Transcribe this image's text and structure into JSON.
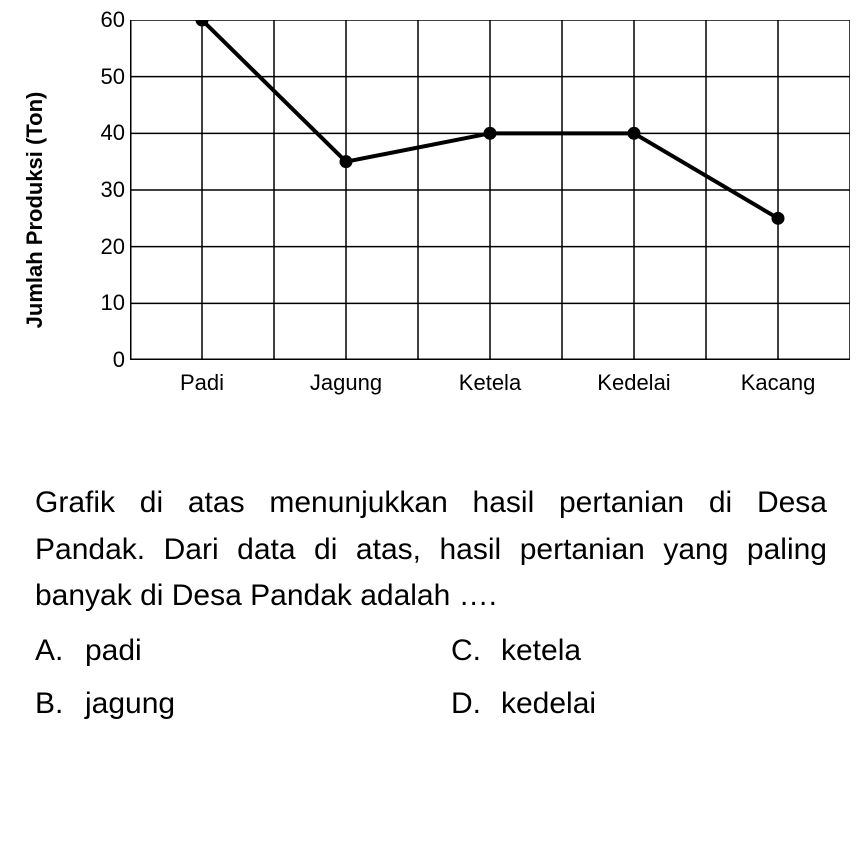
{
  "chart": {
    "type": "line",
    "ylabel": "Jumlah Produksi (Ton)",
    "ylabel_fontsize": 22,
    "ylabel_fontweight": "bold",
    "categories": [
      "Padi",
      "Jagung",
      "Ketela",
      "Kedelai",
      "Kacang"
    ],
    "values": [
      60,
      35,
      40,
      40,
      25
    ],
    "ylim": [
      0,
      60
    ],
    "ytick_step": 10,
    "yticks": [
      0,
      10,
      20,
      30,
      40,
      50,
      60
    ],
    "x_grid_count": 11,
    "x_data_indices": [
      1,
      3,
      5,
      7,
      9
    ],
    "line_color": "#000000",
    "marker_color": "#000000",
    "grid_color": "#000000",
    "background_color": "#ffffff",
    "line_width": 4,
    "grid_width": 1.5,
    "marker_radius": 6.5,
    "tick_label_fontsize": 22
  },
  "question": {
    "text": "Grafik di atas menunjukkan hasil pertanian di Desa Pandak. Dari data di atas, hasil pertanian yang paling banyak di Desa Pandak adalah ….",
    "fontsize": 30,
    "options": [
      {
        "letter": "A.",
        "text": "padi"
      },
      {
        "letter": "B.",
        "text": "jagung"
      },
      {
        "letter": "C.",
        "text": "ketela"
      },
      {
        "letter": "D.",
        "text": "kedelai"
      }
    ]
  }
}
